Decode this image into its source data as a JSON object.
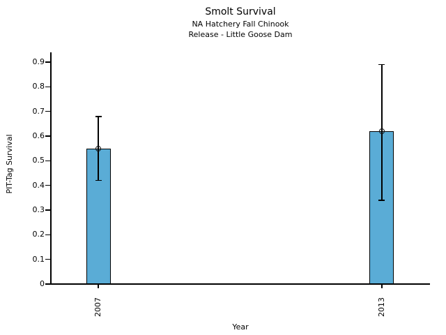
{
  "chart_data": {
    "type": "bar",
    "title": "Smolt Survival",
    "subtitle": [
      "NA Hatchery Fall Chinook",
      "Release - Little Goose Dam"
    ],
    "xlabel": "Year",
    "ylabel": "PIT-Tag Survival",
    "categories": [
      "2007",
      "2013"
    ],
    "values": [
      0.55,
      0.62
    ],
    "error_lower": [
      0.42,
      0.34
    ],
    "error_upper": [
      0.68,
      0.89
    ],
    "marker": "open-circle",
    "ylim": [
      0,
      0.94
    ],
    "yticks": [
      0,
      0.1,
      0.2,
      0.3,
      0.4,
      0.5,
      0.6,
      0.7,
      0.8,
      0.9
    ],
    "ytick_labels": [
      "0",
      "0.1",
      "0.2",
      "0.3",
      "0.4",
      "0.5",
      "0.6",
      "0.7",
      "0.8",
      "0.9"
    ],
    "grid": false,
    "legend": null,
    "x_tick_label_rotation": -90,
    "bar_fill_color": "#5AACD6",
    "bar_edge_color": "#000000",
    "error_bar_color": "#000000",
    "text_color": "#000000",
    "background_color": "#ffffff"
  }
}
